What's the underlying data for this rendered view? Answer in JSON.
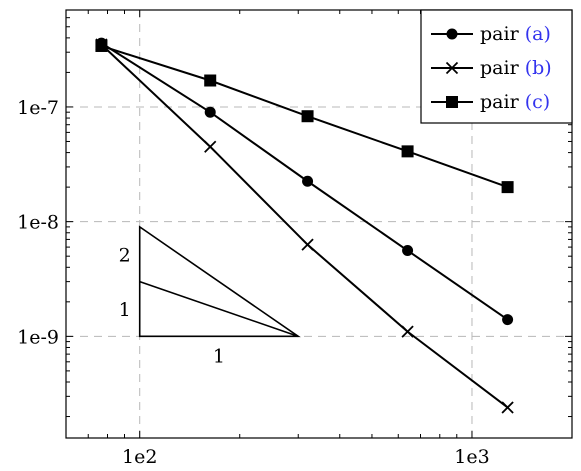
{
  "chart_data": {
    "type": "line",
    "title": "",
    "xlabel": "",
    "ylabel": "",
    "xscale": "log",
    "yscale": "log",
    "xlim": [
      60,
      2000
    ],
    "ylim": [
      1.3e-10,
      7e-07
    ],
    "grid": true,
    "legend_position": "top-right",
    "x_ticks": [
      {
        "value": 100,
        "label": "1e2"
      },
      {
        "value": 1000,
        "label": "1e3"
      }
    ],
    "y_ticks": [
      {
        "value": 1e-07,
        "label": "1e-7"
      },
      {
        "value": 1e-08,
        "label": "1e-8"
      },
      {
        "value": 1e-09,
        "label": "1e-9"
      }
    ],
    "x": [
      76.7,
      163,
      320,
      640,
      1280
    ],
    "series": [
      {
        "name": "pair",
        "ref": "(a)",
        "marker": "circle",
        "values": [
          3.6e-07,
          9e-08,
          2.25e-08,
          5.6e-09,
          1.4e-09
        ]
      },
      {
        "name": "pair",
        "ref": "(b)",
        "marker": "cross",
        "values": [
          3.5e-07,
          4.5e-08,
          6.3e-09,
          1.1e-09,
          2.4e-10
        ]
      },
      {
        "name": "pair",
        "ref": "(c)",
        "marker": "square",
        "values": [
          3.4e-07,
          1.7e-07,
          8.3e-08,
          4.1e-08,
          2e-08
        ]
      }
    ],
    "slope_triangle": {
      "x_start": 100,
      "x_end": 300,
      "y_base": 1e-09,
      "slopes": [
        2,
        1
      ],
      "labels": {
        "run": "1",
        "rise_low": "1",
        "rise_high": "2"
      }
    },
    "colors": {
      "line": "#000000",
      "grid": "#b8b8b8",
      "legend_ref": "#3333ee"
    }
  }
}
